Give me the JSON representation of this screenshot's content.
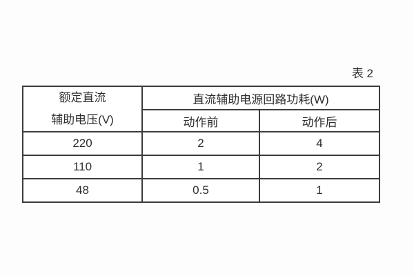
{
  "page": {
    "background_color": "#fdfdfd",
    "caption": "表 2"
  },
  "table": {
    "border_color": "#3c3c3c",
    "header": {
      "col1_line1": "额定直流",
      "col1_line2": "辅助电压(V)",
      "span": "直流辅助电源回路功耗(W)",
      "sub": [
        "动作前",
        "动作后"
      ]
    },
    "rows": [
      [
        "220",
        "2",
        "4"
      ],
      [
        "110",
        "1",
        "2"
      ],
      [
        "48",
        "0.5",
        "1"
      ]
    ]
  }
}
